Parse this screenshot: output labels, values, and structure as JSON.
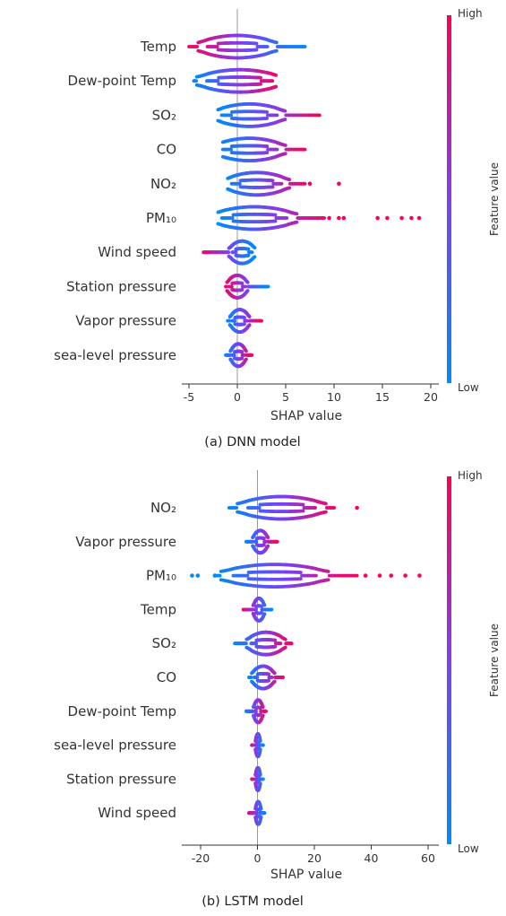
{
  "chart_data": [
    {
      "type": "beeswarm",
      "caption": "(a) DNN model",
      "xlabel": "SHAP value",
      "xlim": [
        -5.5,
        20
      ],
      "xticks": [
        -5,
        0,
        5,
        10,
        15,
        20
      ],
      "xtick_labels": [
        "-5",
        "0",
        "5",
        "10",
        "15",
        "20"
      ],
      "colorbar": {
        "high": "High",
        "low": "Low",
        "title": "Feature value",
        "high_color": "#ff0052",
        "low_color": "#008bfb"
      },
      "features": [
        {
          "name": "Temp",
          "min": -5,
          "max": 7,
          "mass_min": -3,
          "mass_max": 3,
          "high_side": "left",
          "outliers": []
        },
        {
          "name": "Dew-point Temp",
          "min": -4.5,
          "max": 4,
          "mass_min": -3,
          "mass_max": 3.5,
          "high_side": "right",
          "outliers": []
        },
        {
          "name": "SO₂",
          "min": -2,
          "max": 8.5,
          "mass_min": -1.5,
          "mass_max": 4,
          "high_side": "right",
          "outliers": []
        },
        {
          "name": "CO",
          "min": -1.5,
          "max": 7,
          "mass_min": -1.5,
          "mass_max": 4,
          "high_side": "right",
          "outliers": []
        },
        {
          "name": "NO₂",
          "min": -1,
          "max": 7,
          "mass_min": -0.5,
          "mass_max": 4.5,
          "high_side": "right",
          "outliers": [
            7.5,
            10.5
          ]
        },
        {
          "name": "PM₁₀",
          "min": -2,
          "max": 9,
          "mass_min": -1.5,
          "mass_max": 5,
          "high_side": "right",
          "outliers": [
            9.5,
            10.5,
            11,
            14.5,
            15.5,
            17,
            18,
            18.8
          ]
        },
        {
          "name": "Wind speed",
          "min": -3.5,
          "max": 1.8,
          "mass_min": -0.5,
          "mass_max": 1.5,
          "high_side": "left",
          "outliers": []
        },
        {
          "name": "Station pressure",
          "min": -1.2,
          "max": 3.2,
          "mass_min": -0.8,
          "mass_max": 0.8,
          "high_side": "left",
          "outliers": []
        },
        {
          "name": "Vapor pressure",
          "min": -1,
          "max": 2.5,
          "mass_min": -0.5,
          "mass_max": 1,
          "high_side": "right",
          "outliers": []
        },
        {
          "name": "sea-level pressure",
          "min": -1.2,
          "max": 1.5,
          "mass_min": -0.5,
          "mass_max": 0.7,
          "high_side": "right",
          "outliers": []
        }
      ]
    },
    {
      "type": "beeswarm",
      "caption": "(b) LSTM model",
      "xlabel": "SHAP value",
      "xlim": [
        -27,
        62
      ],
      "xticks": [
        -20,
        0,
        20,
        40,
        60
      ],
      "xtick_labels": [
        "-20",
        "0",
        "20",
        "40",
        "60"
      ],
      "colorbar": {
        "high": "High",
        "low": "Low",
        "title": "Feature value",
        "high_color": "#ff0052",
        "low_color": "#008bfb"
      },
      "features": [
        {
          "name": "NO₂",
          "min": -10,
          "max": 27,
          "mass_min": -3,
          "mass_max": 20,
          "high_side": "right",
          "outliers": [
            35
          ]
        },
        {
          "name": "Vapor pressure",
          "min": -4,
          "max": 7,
          "mass_min": -1,
          "mass_max": 3,
          "high_side": "right",
          "outliers": []
        },
        {
          "name": "PM₁₀",
          "min": -15,
          "max": 35,
          "mass_min": -8,
          "mass_max": 20,
          "high_side": "right",
          "outliers": [
            -23,
            -21,
            -15,
            38,
            43,
            47,
            52,
            57
          ]
        },
        {
          "name": "Temp",
          "min": -5,
          "max": 5,
          "mass_min": -1,
          "mass_max": 2,
          "high_side": "left",
          "outliers": []
        },
        {
          "name": "SO₂",
          "min": -8,
          "max": 12,
          "mass_min": -2,
          "mass_max": 8,
          "high_side": "right",
          "outliers": []
        },
        {
          "name": "CO",
          "min": -3,
          "max": 9,
          "mass_min": -1,
          "mass_max": 5,
          "high_side": "right",
          "outliers": []
        },
        {
          "name": "Dew-point Temp",
          "min": -4,
          "max": 3,
          "mass_min": -1,
          "mass_max": 1.5,
          "high_side": "right",
          "outliers": []
        },
        {
          "name": "sea-level pressure",
          "min": -2,
          "max": 2,
          "mass_min": -0.5,
          "mass_max": 0.8,
          "high_side": "left",
          "outliers": []
        },
        {
          "name": "Station pressure",
          "min": -2,
          "max": 2,
          "mass_min": -0.5,
          "mass_max": 0.8,
          "high_side": "left",
          "outliers": []
        },
        {
          "name": "Wind speed",
          "min": -3,
          "max": 2.5,
          "mass_min": -0.5,
          "mass_max": 1,
          "high_side": "left",
          "outliers": []
        }
      ]
    }
  ]
}
